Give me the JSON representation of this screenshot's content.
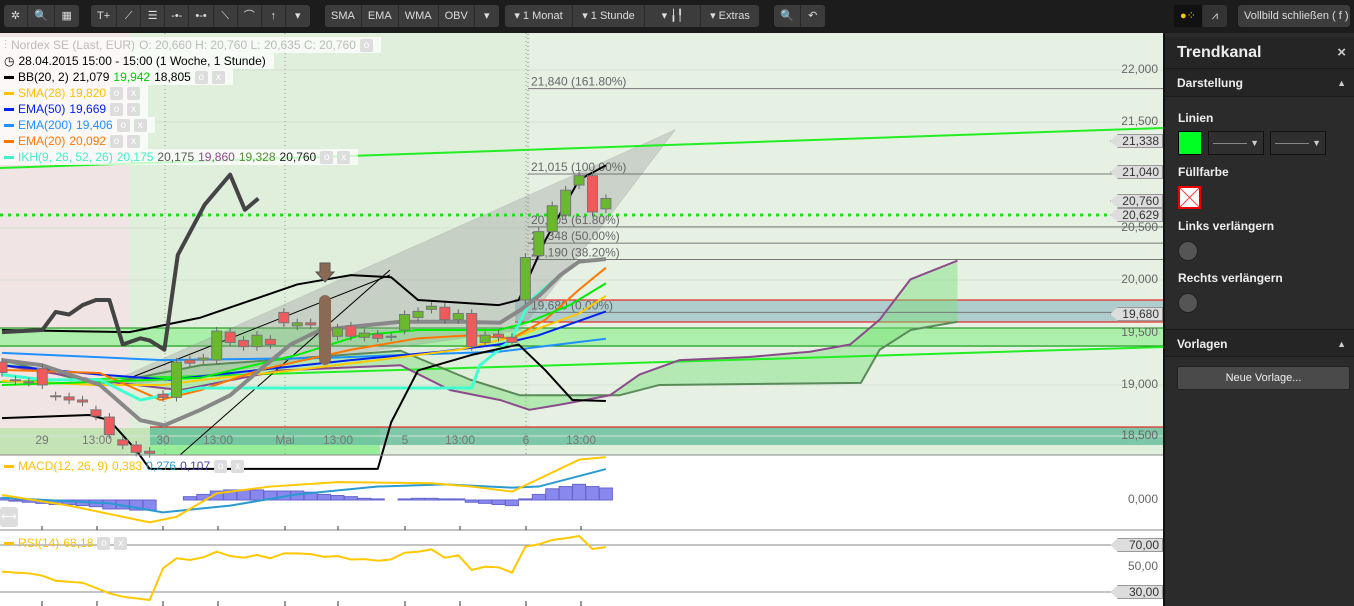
{
  "toolbar": {
    "group1": [
      "✲",
      "🔍",
      "▦"
    ],
    "group2": [
      "T+",
      "⟋",
      "☰",
      "-•-",
      "•-•",
      "⟍",
      "⌒",
      "↑",
      "▾"
    ],
    "indicators": [
      "SMA",
      "EMA",
      "WMA",
      "OBV",
      "▾"
    ],
    "period": "▾ 1 Monat",
    "interval": "▾ 1 Stunde",
    "chart_type": "▾ ╽╿",
    "extras": "▾ Extras",
    "zoom_icons": [
      "🔍",
      "↶"
    ],
    "fullscreen": "Vollbild schließen ( f )"
  },
  "legend": {
    "instrument": "Nordex SE (Last, EUR)",
    "ohlc": "O: 20,660  H: 20,760  L: 20,635  C: 20,760",
    "time": "28.04.2015 15:00 - 15:00 (1 Woche, 1 Stunde)",
    "bb": {
      "name": "BB(20, 2)",
      "v1": "21,079",
      "v2": "19,942",
      "v3": "18,805"
    },
    "sma": {
      "name": "SMA(28)",
      "v": "19,820"
    },
    "ema50": {
      "name": "EMA(50)",
      "v": "19,669"
    },
    "ema200": {
      "name": "EMA(200)",
      "v": "19,406"
    },
    "ema20": {
      "name": "EMA(20)",
      "v": "20,092"
    },
    "ikh": {
      "name": "IKH(9, 26, 52, 26)",
      "v1": "20,175",
      "v2": "20,175",
      "v3": "19,860",
      "v4": "19,328",
      "v5": "20,760"
    },
    "macd": {
      "name": "MACD(12, 26, 9)",
      "v1": "0,383",
      "v2": "0,276",
      "v3": "0,107"
    },
    "rsi": {
      "name": "RSI(14)",
      "v": "68,18"
    }
  },
  "colors": {
    "bb": "#000000",
    "bb_mid": "#00ee00",
    "sma": "#ffc800",
    "ema50": "#0022ee",
    "ema200": "#1e90ff",
    "ema20": "#ff7700",
    "ikh_tenkan": "#40ffd0",
    "ikh_kijun": "#888888",
    "ikh_a": "#8b4a8b",
    "ikh_b": "#5a8a5a",
    "up": "#6ab82e",
    "down": "#f05a5a",
    "macd": "#ffc800",
    "signal": "#2a9ad0",
    "hist": "#8888ee",
    "rsi": "#ffc800"
  },
  "price_axis": [
    "22,000",
    "21,500",
    "20,500",
    "20,000",
    "19,500",
    "19,000",
    "18,500"
  ],
  "price_tags": [
    "21,338",
    "21,040",
    "20,760",
    "20,629",
    "19,680"
  ],
  "fib_labels": [
    "21,840 (161.80%)",
    "21,015 (100.00%)",
    "20,505 (61.80%)",
    "20,348 (50.00%)",
    "20,190 (38.20%)",
    "19,680 (0.00%)"
  ],
  "time_axis": [
    "29",
    "13:00",
    "30",
    "13:00",
    "Mai",
    "13:00",
    "5",
    "13:00",
    "6",
    "13:00"
  ],
  "macd_axis": [
    "0,000"
  ],
  "rsi_axis": [
    "70,00",
    "50,00",
    "30,00"
  ],
  "panel": {
    "title": "Trendkanal",
    "close": "×",
    "section1": "Darstellung",
    "lines": "Linien",
    "line_color": "#00ff22",
    "fill": "Füllfarbe",
    "extend_left": "Links verlängern",
    "extend_right": "Rechts verlängern",
    "section2": "Vorlagen",
    "new_template": "Neue Vorlage..."
  },
  "chart_data": {
    "type": "candlestick",
    "price_ylim": [
      18400,
      22300
    ],
    "candles": [
      [
        19180,
        19080
      ],
      [
        19010,
        19000
      ],
      [
        18990,
        18985
      ],
      [
        19120,
        18960
      ],
      [
        18855,
        18850
      ],
      [
        18845,
        18815
      ],
      [
        18815,
        18795
      ],
      [
        18720,
        18660
      ],
      [
        18650,
        18480
      ],
      [
        18430,
        18380
      ],
      [
        18380,
        18310
      ],
      [
        18320,
        18300
      ],
      [
        18870,
        18840
      ],
      [
        18840,
        19180
      ],
      [
        19200,
        19170
      ],
      [
        19200,
        19220
      ],
      [
        19200,
        19480
      ],
      [
        19470,
        19370
      ],
      [
        19390,
        19330
      ],
      [
        19330,
        19440
      ],
      [
        19400,
        19350
      ],
      [
        19660,
        19560
      ],
      [
        19530,
        19560
      ],
      [
        19560,
        19540
      ],
      [
        19420,
        19520
      ],
      [
        19430,
        19510
      ],
      [
        19530,
        19430
      ],
      [
        19420,
        19460
      ],
      [
        19450,
        19410
      ],
      [
        19430,
        19425
      ],
      [
        19490,
        19640
      ],
      [
        19610,
        19670
      ],
      [
        19690,
        19720
      ],
      [
        19710,
        19590
      ],
      [
        19590,
        19650
      ],
      [
        19650,
        19330
      ],
      [
        19370,
        19440
      ],
      [
        19450,
        19420
      ],
      [
        19420,
        19370
      ],
      [
        19780,
        20190
      ],
      [
        20210,
        20440
      ],
      [
        20440,
        20690
      ],
      [
        20600,
        20840
      ],
      [
        20890,
        20980
      ],
      [
        20980,
        20630
      ],
      [
        20660,
        20760
      ]
    ],
    "overlays": {
      "bb_upper": [
        [
          0,
          19490
        ],
        [
          9.5,
          19470
        ],
        [
          14.8,
          19610
        ],
        [
          22,
          19930
        ],
        [
          26,
          20020
        ],
        [
          29,
          20000
        ],
        [
          31,
          19780
        ],
        [
          37,
          19730
        ],
        [
          38.5,
          19780
        ],
        [
          40.5,
          20360
        ],
        [
          43,
          20940
        ],
        [
          45,
          21079
        ]
      ],
      "bb_lower": [
        [
          0,
          18640
        ],
        [
          6.5,
          18670
        ],
        [
          8,
          18620
        ],
        [
          10,
          18330
        ],
        [
          11,
          18150
        ],
        [
          28,
          18150
        ],
        [
          29,
          18600
        ],
        [
          31,
          19100
        ],
        [
          35,
          19250
        ],
        [
          38.5,
          19350
        ],
        [
          40.5,
          19100
        ],
        [
          42.5,
          18815
        ],
        [
          45,
          18805
        ]
      ],
      "bb_mid": [
        [
          0,
          18960
        ],
        [
          9.5,
          19000
        ],
        [
          14.8,
          19030
        ],
        [
          22,
          19250
        ],
        [
          26.7,
          19440
        ],
        [
          31,
          19490
        ],
        [
          37,
          19490
        ],
        [
          39.3,
          19570
        ],
        [
          42.3,
          19730
        ],
        [
          45,
          19942
        ]
      ],
      "sma28": [
        [
          0,
          19000
        ],
        [
          7,
          18960
        ],
        [
          12,
          18960
        ],
        [
          15,
          19010
        ],
        [
          22,
          19105
        ],
        [
          28,
          19200
        ],
        [
          34,
          19300
        ],
        [
          38.6,
          19440
        ],
        [
          43,
          19650
        ],
        [
          45,
          19820
        ]
      ],
      "ema50": [
        [
          0,
          19150
        ],
        [
          7.3,
          19060
        ],
        [
          12.5,
          19010
        ],
        [
          19.2,
          19105
        ],
        [
          26,
          19200
        ],
        [
          32.6,
          19280
        ],
        [
          37,
          19350
        ],
        [
          40,
          19440
        ],
        [
          45,
          19669
        ]
      ],
      "ema200": [
        [
          0,
          19270
        ],
        [
          12,
          19200
        ],
        [
          24,
          19220
        ],
        [
          30,
          19250
        ],
        [
          37,
          19280
        ],
        [
          45,
          19406
        ]
      ],
      "ema20": [
        [
          0,
          19105
        ],
        [
          7.3,
          19075
        ],
        [
          11.8,
          18815
        ],
        [
          14.8,
          18910
        ],
        [
          19.2,
          19105
        ],
        [
          26,
          19300
        ],
        [
          31,
          19410
        ],
        [
          35,
          19440
        ],
        [
          38,
          19410
        ],
        [
          40.5,
          19590
        ],
        [
          43,
          19880
        ],
        [
          45,
          20092
        ]
      ],
      "ikh_tenkan": [
        [
          0,
          19060
        ],
        [
          3,
          19010
        ],
        [
          7.3,
          19010
        ],
        [
          10.3,
          18815
        ],
        [
          14.8,
          18930
        ],
        [
          35,
          18930
        ],
        [
          35.6,
          19150
        ],
        [
          37.9,
          19390
        ],
        [
          39.4,
          19780
        ],
        [
          41.6,
          20020
        ],
        [
          43,
          20150
        ],
        [
          45,
          20175
        ]
      ],
      "ikh_kijun": [
        [
          0,
          19200
        ],
        [
          3,
          19150
        ],
        [
          7.3,
          18960
        ],
        [
          10.3,
          18620
        ],
        [
          12.1,
          18570
        ],
        [
          14.8,
          18720
        ],
        [
          17,
          18860
        ],
        [
          19.2,
          19105
        ],
        [
          21.5,
          19350
        ],
        [
          23.7,
          19490
        ],
        [
          29.7,
          19570
        ],
        [
          34.1,
          19570
        ],
        [
          37.1,
          19560
        ],
        [
          38.6,
          19680
        ],
        [
          40.1,
          19830
        ],
        [
          41.6,
          20020
        ],
        [
          43,
          20150
        ],
        [
          45,
          20175
        ]
      ],
      "ikh_chikou": [
        [
          0,
          19470
        ],
        [
          3,
          19490
        ],
        [
          4,
          19665
        ],
        [
          5,
          19640
        ],
        [
          6,
          19730
        ],
        [
          7,
          19780
        ],
        [
          8,
          19780
        ],
        [
          9,
          19350
        ],
        [
          10.3,
          19410
        ],
        [
          11,
          19390
        ],
        [
          12.1,
          19300
        ],
        [
          13.1,
          20215
        ],
        [
          15.1,
          20700
        ],
        [
          17,
          20990
        ],
        [
          18.1,
          20650
        ],
        [
          19.1,
          20760
        ]
      ],
      "ikh_senkou_a": [
        [
          0,
          19150
        ],
        [
          7.3,
          19000
        ],
        [
          13.3,
          18910
        ],
        [
          20.7,
          19100
        ],
        [
          29.7,
          19150
        ],
        [
          33.4,
          18910
        ],
        [
          37.1,
          18815
        ],
        [
          39.3,
          18720
        ],
        [
          41.6,
          18770
        ],
        [
          45.3,
          18860
        ],
        [
          47.5,
          19060
        ],
        [
          50.5,
          19200
        ],
        [
          55.7,
          19230
        ],
        [
          60.2,
          19280
        ],
        [
          63.2,
          19350
        ],
        [
          65.4,
          19590
        ],
        [
          67.7,
          19980
        ],
        [
          71.2,
          20160
        ]
      ],
      "ikh_senkou_b": [
        [
          0,
          19200
        ],
        [
          7.3,
          18960
        ],
        [
          14.8,
          19150
        ],
        [
          29.7,
          19290
        ],
        [
          34.9,
          19010
        ],
        [
          38.6,
          18860
        ],
        [
          46,
          18860
        ],
        [
          49,
          18960
        ],
        [
          64,
          18980
        ],
        [
          65.4,
          19300
        ],
        [
          67.7,
          19490
        ],
        [
          71.2,
          19570
        ]
      ]
    },
    "fibonacci": {
      "prices": [
        21840,
        21015,
        20505,
        20348,
        20190,
        19680
      ]
    },
    "horizontal_levels": {
      "dotted_green": 20629
    },
    "macd": {
      "hist": [
        0.02,
        -0.01,
        -0.02,
        -0.03,
        -0.04,
        -0.04,
        -0.05,
        -0.06,
        -0.08,
        -0.08,
        -0.09,
        -0.09,
        0,
        0,
        0.03,
        0.05,
        0.08,
        0.09,
        0.09,
        0.09,
        0.08,
        0.08,
        0.08,
        0.07,
        0.05,
        0.04,
        0.03,
        0.015,
        0.01,
        0,
        0.01,
        0.015,
        0.015,
        0.01,
        0.01,
        -0.02,
        -0.03,
        -0.04,
        -0.05,
        0.01,
        0.05,
        0.1,
        0.12,
        0.14,
        0.12,
        0.107
      ],
      "macd_line": [
        [
          0,
          0.045
        ],
        [
          5,
          -0.05
        ],
        [
          11,
          -0.2
        ],
        [
          13,
          -0.15
        ],
        [
          16,
          0.06
        ],
        [
          20,
          0.12
        ],
        [
          25,
          0.16
        ],
        [
          32,
          0.15
        ],
        [
          35,
          0.12
        ],
        [
          38,
          0.075
        ],
        [
          43,
          0.36
        ],
        [
          45,
          0.383
        ]
      ],
      "signal_line": [
        [
          0,
          0.02
        ],
        [
          8,
          -0.03
        ],
        [
          12,
          -0.11
        ],
        [
          17,
          -0.05
        ],
        [
          22,
          0.05
        ],
        [
          28,
          0.12
        ],
        [
          33,
          0.14
        ],
        [
          38,
          0.11
        ],
        [
          40,
          0.12
        ],
        [
          45,
          0.276
        ]
      ]
    },
    "rsi": {
      "levels": [
        70,
        50,
        30
      ],
      "values": [
        47.3,
        46.5,
        45.9,
        43.9,
        39.6,
        38.7,
        37.9,
        33.4,
        28.9,
        26.0,
        24.6,
        23.2,
        50.1,
        58.7,
        57.2,
        59.5,
        64.3,
        60.6,
        59.2,
        61.5,
        58.7,
        62.9,
        62.9,
        62.2,
        59.9,
        60.6,
        57.7,
        58.0,
        56.6,
        57.7,
        63.4,
        64.3,
        66.3,
        59.2,
        61.2,
        48.7,
        51.6,
        51.0,
        46.5,
        68.6,
        70.6,
        74.3,
        75.7,
        77.7,
        66.6,
        68.18
      ]
    }
  }
}
